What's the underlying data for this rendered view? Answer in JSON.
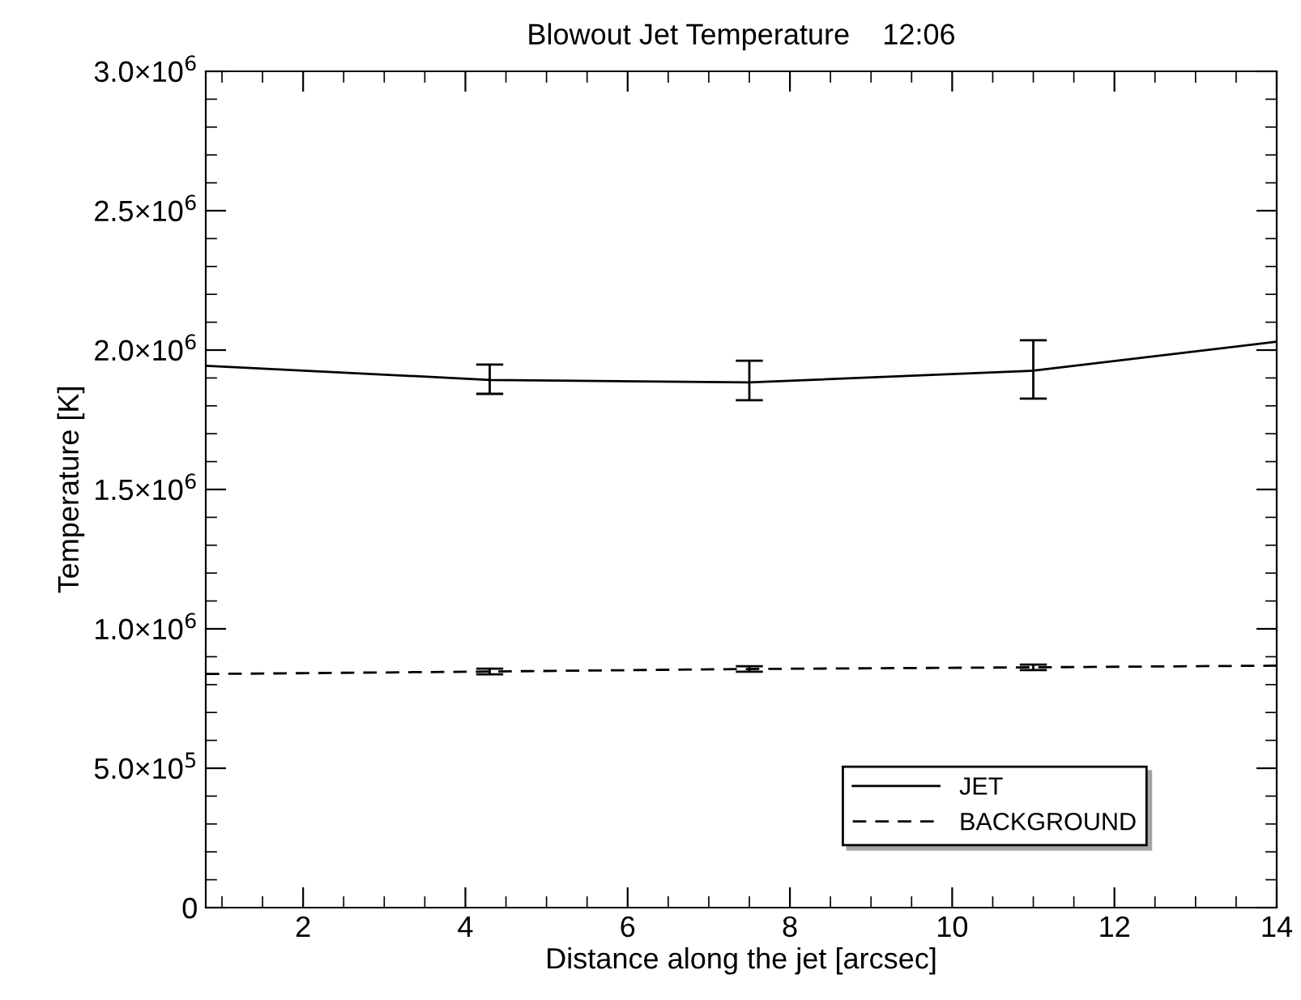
{
  "chart_data": {
    "type": "line",
    "title": "Blowout Jet Temperature    12:06",
    "xlabel": "Distance along the jet [arcsec]",
    "ylabel": "Temperature [K]",
    "x": [
      0.8,
      4.3,
      7.5,
      11.0,
      14.0
    ],
    "series": [
      {
        "name": "JET",
        "color": "#000000",
        "line_style": "solid",
        "values": [
          1944000,
          1893000,
          1884000,
          1926000,
          2030000
        ],
        "errors": [
          null,
          [
            1843000,
            1948000
          ],
          [
            1820000,
            1962000
          ],
          [
            1826000,
            2035000
          ],
          null
        ]
      },
      {
        "name": "BACKGROUND",
        "color": "#000000",
        "line_style": "dashed",
        "values": [
          838000,
          847000,
          856000,
          862000,
          868000
        ],
        "errors": [
          null,
          10000,
          10000,
          10000,
          null
        ]
      }
    ],
    "xlim": [
      0.8,
      14
    ],
    "xticks": [
      2,
      4,
      6,
      8,
      10,
      12,
      14
    ],
    "ylim": [
      0,
      3000000
    ],
    "yticks": [
      {
        "value": 0,
        "label": "0"
      },
      {
        "value": 500000,
        "label": "5.0×10$^{5}$"
      },
      {
        "value": 1000000,
        "label": "1.0×10$^{6}$"
      },
      {
        "value": 1500000,
        "label": "1.5×10$^{6}$"
      },
      {
        "value": 2000000,
        "label": "2.0×10$^{6}$"
      },
      {
        "value": 2500000,
        "label": "2.5×10$^{6}$"
      },
      {
        "value": 3000000,
        "label": "3.0×10$^{6}$"
      }
    ],
    "legend": "bottom right",
    "marker": "none"
  }
}
